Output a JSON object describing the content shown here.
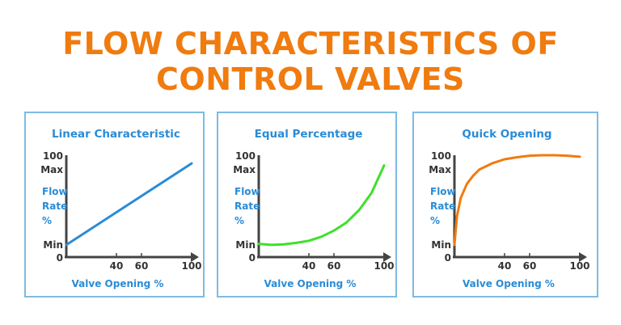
{
  "title_lines": [
    "FLOW CHARACTERISTICS OF",
    "CONTROL VALVES"
  ],
  "colors": {
    "title": "#f07b0f",
    "label": "#2a8bd6",
    "axis": "#444444",
    "border": "#7dbbe3"
  },
  "chart_data": [
    {
      "type": "line",
      "title": "Linear Characteristic",
      "color": "#2a8bd6",
      "xlabel": "Valve Opening %",
      "ylabel": [
        "Flow",
        "Rate",
        "%"
      ],
      "xticks": [
        "40",
        "60",
        "100"
      ],
      "xtick_values": [
        40,
        60,
        100
      ],
      "origin_label": "0",
      "yticks": [
        "100",
        "Max",
        "Min"
      ],
      "xlim": [
        0,
        100
      ],
      "ylim": [
        0,
        100
      ],
      "x": [
        0,
        100
      ],
      "y": [
        12,
        92
      ]
    },
    {
      "type": "line",
      "title": "Equal Percentage",
      "color": "#3ee02a",
      "xlabel": "Valve Opening %",
      "ylabel": [
        "Flow",
        "Rate",
        "%"
      ],
      "xticks": [
        "40",
        "60",
        "100"
      ],
      "xtick_values": [
        40,
        60,
        100
      ],
      "origin_label": "0",
      "yticks": [
        "100",
        "Max",
        "Min"
      ],
      "xlim": [
        0,
        100
      ],
      "ylim": [
        0,
        100
      ],
      "x": [
        0,
        10,
        20,
        30,
        40,
        50,
        60,
        70,
        80,
        90,
        100
      ],
      "y": [
        13,
        12,
        12.5,
        14,
        16,
        20,
        26,
        34,
        46,
        63,
        90
      ]
    },
    {
      "type": "line",
      "title": "Quick Opening",
      "color": "#f07b0f",
      "xlabel": "Valve Opening %",
      "ylabel": [
        "Flow",
        "Rate",
        "%"
      ],
      "xticks": [
        "40",
        "60",
        "100"
      ],
      "xtick_values": [
        40,
        60,
        100
      ],
      "origin_label": "0",
      "yticks": [
        "100",
        "Max",
        "Min"
      ],
      "xlim": [
        0,
        100
      ],
      "ylim": [
        0,
        100
      ],
      "x": [
        0,
        2,
        5,
        10,
        15,
        20,
        30,
        40,
        50,
        60,
        70,
        80,
        90,
        100
      ],
      "y": [
        12,
        40,
        58,
        72,
        80,
        86,
        92,
        96,
        98,
        99.5,
        100,
        100,
        99.5,
        98.5
      ]
    }
  ]
}
